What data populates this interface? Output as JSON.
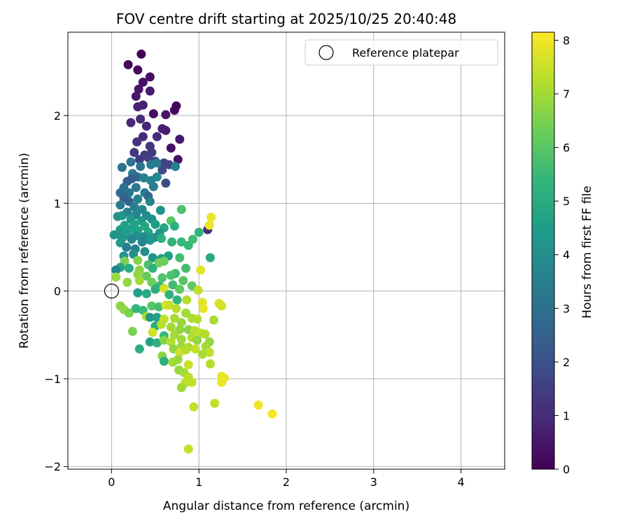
{
  "chart_data": {
    "type": "scatter",
    "title": "FOV centre drift starting at 2025/10/25 20:40:48",
    "xlabel": "Angular distance from reference (arcmin)",
    "ylabel": "Rotation from reference (arcmin)",
    "xlim": [
      -0.5,
      4.5
    ],
    "ylim": [
      -2.03,
      2.95
    ],
    "x_ticks": [
      0,
      1,
      2,
      3,
      4
    ],
    "x_tick_labels": [
      "0",
      "1",
      "2",
      "3",
      "4"
    ],
    "y_ticks": [
      -2,
      -1,
      0,
      1,
      2
    ],
    "y_tick_labels": [
      "−2",
      "−1",
      "0",
      "1",
      "2"
    ],
    "grid": true,
    "legend": {
      "position": "upper-right",
      "entries": [
        "Reference platepar"
      ]
    },
    "reference_point": {
      "name": "Reference platepar",
      "x": 0,
      "y": 0,
      "marker": "open-circle"
    },
    "colorbar": {
      "label": "Hours from first FF file",
      "colormap": "viridis",
      "range": [
        0,
        8.15
      ],
      "ticks": [
        0,
        1,
        2,
        3,
        4,
        5,
        6,
        7,
        8
      ],
      "tick_labels": [
        "0",
        "1",
        "2",
        "3",
        "4",
        "5",
        "6",
        "7",
        "8"
      ]
    },
    "points_note": "Each point is [x_arcmin, rotation_arcmin, hours]",
    "points": [
      [
        0.34,
        2.7,
        0.05
      ],
      [
        0.19,
        2.58,
        0.15
      ],
      [
        0.3,
        2.52,
        0.25
      ],
      [
        0.44,
        2.44,
        0.35
      ],
      [
        0.36,
        2.38,
        0.4
      ],
      [
        0.31,
        2.3,
        0.45
      ],
      [
        0.28,
        2.22,
        0.55
      ],
      [
        0.44,
        2.28,
        0.6
      ],
      [
        0.36,
        2.12,
        0.7
      ],
      [
        0.3,
        2.1,
        0.8
      ],
      [
        0.48,
        2.02,
        0.3
      ],
      [
        0.62,
        2.01,
        0.5
      ],
      [
        0.72,
        2.06,
        0.2
      ],
      [
        0.74,
        2.11,
        0.1
      ],
      [
        0.22,
        1.92,
        0.9
      ],
      [
        0.33,
        1.96,
        1.0
      ],
      [
        0.4,
        1.88,
        0.85
      ],
      [
        0.58,
        1.85,
        0.75
      ],
      [
        0.62,
        1.83,
        0.65
      ],
      [
        0.36,
        1.76,
        0.95
      ],
      [
        0.52,
        1.76,
        1.05
      ],
      [
        0.78,
        1.73,
        0.55
      ],
      [
        0.29,
        1.7,
        1.2
      ],
      [
        0.44,
        1.65,
        1.25
      ],
      [
        0.68,
        1.63,
        0.4
      ],
      [
        0.26,
        1.58,
        1.3
      ],
      [
        0.38,
        1.55,
        1.35
      ],
      [
        0.46,
        1.58,
        1.4
      ],
      [
        0.32,
        1.5,
        1.45
      ],
      [
        0.42,
        1.52,
        1.5
      ],
      [
        0.5,
        1.48,
        1.55
      ],
      [
        0.76,
        1.5,
        0.45
      ],
      [
        0.6,
        1.46,
        1.6
      ],
      [
        0.66,
        1.44,
        1.65
      ],
      [
        0.58,
        1.38,
        1.8
      ],
      [
        0.12,
        1.41,
        3.0
      ],
      [
        0.22,
        1.47,
        3.1
      ],
      [
        0.33,
        1.42,
        3.2
      ],
      [
        0.45,
        1.44,
        3.3
      ],
      [
        0.52,
        1.46,
        3.4
      ],
      [
        0.73,
        1.42,
        3.5
      ],
      [
        0.24,
        1.34,
        3.3
      ],
      [
        0.3,
        1.3,
        2.8
      ],
      [
        0.37,
        1.29,
        3.6
      ],
      [
        0.45,
        1.26,
        3.7
      ],
      [
        0.52,
        1.3,
        3.8
      ],
      [
        0.18,
        1.25,
        2.5
      ],
      [
        0.62,
        1.23,
        1.9
      ],
      [
        0.23,
        1.28,
        2.4
      ],
      [
        0.14,
        1.18,
        3.1
      ],
      [
        0.2,
        1.12,
        3.2
      ],
      [
        0.1,
        1.12,
        2.9
      ],
      [
        0.28,
        1.18,
        3.3
      ],
      [
        0.48,
        1.19,
        3.4
      ],
      [
        0.38,
        1.12,
        3.5
      ],
      [
        0.42,
        1.08,
        2.7
      ],
      [
        0.14,
        1.06,
        2.6
      ],
      [
        0.2,
        1.02,
        2.5
      ],
      [
        0.3,
        1.05,
        3.6
      ],
      [
        0.44,
        1.02,
        3.7
      ],
      [
        0.1,
        0.98,
        3.4
      ],
      [
        0.26,
        0.96,
        3.5
      ],
      [
        0.35,
        0.93,
        3.8
      ],
      [
        0.56,
        0.92,
        4.2
      ],
      [
        0.8,
        0.93,
        5.8
      ],
      [
        0.18,
        0.9,
        3.6
      ],
      [
        0.28,
        0.87,
        3.7
      ],
      [
        0.4,
        0.86,
        3.9
      ],
      [
        0.46,
        0.82,
        4.0
      ],
      [
        0.07,
        0.85,
        4.1
      ],
      [
        0.12,
        0.86,
        4.2
      ],
      [
        0.22,
        0.82,
        4.3
      ],
      [
        0.34,
        0.8,
        4.4
      ],
      [
        0.68,
        0.8,
        6.0
      ],
      [
        0.5,
        0.76,
        4.5
      ],
      [
        0.15,
        0.75,
        4.6
      ],
      [
        0.26,
        0.76,
        4.7
      ],
      [
        0.38,
        0.74,
        4.8
      ],
      [
        0.6,
        0.72,
        4.9
      ],
      [
        0.72,
        0.74,
        5.1
      ],
      [
        0.1,
        0.7,
        4.5
      ],
      [
        0.2,
        0.7,
        4.6
      ],
      [
        0.3,
        0.69,
        4.7
      ],
      [
        0.42,
        0.67,
        4.8
      ],
      [
        0.55,
        0.66,
        4.3
      ],
      [
        0.08,
        0.65,
        4.4
      ],
      [
        0.18,
        0.64,
        4.5
      ],
      [
        0.28,
        0.63,
        4.0
      ],
      [
        0.37,
        0.62,
        3.9
      ],
      [
        0.49,
        0.61,
        4.1
      ],
      [
        0.03,
        0.64,
        4.2
      ],
      [
        0.12,
        0.6,
        4.3
      ],
      [
        0.23,
        0.59,
        3.8
      ],
      [
        0.44,
        0.58,
        4.4
      ],
      [
        0.57,
        0.6,
        5.2
      ],
      [
        0.1,
        0.55,
        4.5
      ],
      [
        0.35,
        0.56,
        3.7
      ],
      [
        0.69,
        0.56,
        5.3
      ],
      [
        0.8,
        0.56,
        5.4
      ],
      [
        0.88,
        0.52,
        5.5
      ],
      [
        0.93,
        0.59,
        5.6
      ],
      [
        0.17,
        0.5,
        3.5
      ],
      [
        0.27,
        0.48,
        3.6
      ],
      [
        0.38,
        0.45,
        4.0
      ],
      [
        0.25,
        0.42,
        4.1
      ],
      [
        0.14,
        0.4,
        4.2
      ],
      [
        0.47,
        0.38,
        4.3
      ],
      [
        0.57,
        0.37,
        4.4
      ],
      [
        0.65,
        0.4,
        4.5
      ],
      [
        0.78,
        0.38,
        5.7
      ],
      [
        1.0,
        0.67,
        5.3
      ],
      [
        1.1,
        0.7,
        1.0
      ],
      [
        1.12,
        0.75,
        7.95
      ],
      [
        1.14,
        0.84,
        7.9
      ],
      [
        1.13,
        0.38,
        5.0
      ],
      [
        1.02,
        0.24,
        7.8
      ],
      [
        0.15,
        0.34,
        6.5
      ],
      [
        0.3,
        0.35,
        6.6
      ],
      [
        0.42,
        0.3,
        5.8
      ],
      [
        0.54,
        0.32,
        6.4
      ],
      [
        0.6,
        0.34,
        6.3
      ],
      [
        0.1,
        0.27,
        4.8
      ],
      [
        0.2,
        0.26,
        5.0
      ],
      [
        0.32,
        0.24,
        6.7
      ],
      [
        0.47,
        0.26,
        5.2
      ],
      [
        0.73,
        0.2,
        5.6
      ],
      [
        0.85,
        0.26,
        5.7
      ],
      [
        0.05,
        0.24,
        3.6
      ],
      [
        0.3,
        0.19,
        6.8
      ],
      [
        0.4,
        0.17,
        6.2
      ],
      [
        0.58,
        0.15,
        5.9
      ],
      [
        0.68,
        0.18,
        5.8
      ],
      [
        0.82,
        0.12,
        6.0
      ],
      [
        0.92,
        0.06,
        6.1
      ],
      [
        0.05,
        0.16,
        6.9
      ],
      [
        0.18,
        0.1,
        6.8
      ],
      [
        0.32,
        0.12,
        7.0
      ],
      [
        0.46,
        0.1,
        6.3
      ],
      [
        0.55,
        0.06,
        5.5
      ],
      [
        0.7,
        0.07,
        5.6
      ],
      [
        0.78,
        0.02,
        6.1
      ],
      [
        0.99,
        0.01,
        7.4
      ],
      [
        0.3,
        -0.02,
        4.6
      ],
      [
        0.4,
        -0.03,
        4.9
      ],
      [
        0.5,
        0.02,
        5.1
      ],
      [
        0.6,
        0.03,
        7.6
      ],
      [
        0.66,
        -0.04,
        5.2
      ],
      [
        0.75,
        -0.1,
        5.3
      ],
      [
        0.86,
        -0.1,
        7.2
      ],
      [
        1.04,
        -0.13,
        7.8
      ],
      [
        1.23,
        -0.14,
        7.7
      ],
      [
        1.26,
        -0.17,
        7.6
      ],
      [
        1.05,
        -0.2,
        7.9
      ],
      [
        0.1,
        -0.17,
        6.7
      ],
      [
        0.14,
        -0.21,
        6.8
      ],
      [
        0.2,
        -0.25,
        6.5
      ],
      [
        0.28,
        -0.2,
        5.4
      ],
      [
        0.36,
        -0.22,
        5.5
      ],
      [
        0.46,
        -0.17,
        6.0
      ],
      [
        0.54,
        -0.18,
        5.7
      ],
      [
        0.62,
        -0.16,
        7.7
      ],
      [
        0.66,
        -0.16,
        7.5
      ],
      [
        0.74,
        -0.2,
        7.3
      ],
      [
        0.85,
        -0.25,
        7.0
      ],
      [
        0.4,
        -0.29,
        7.1
      ],
      [
        0.44,
        -0.3,
        4.3
      ],
      [
        0.52,
        -0.3,
        4.6
      ],
      [
        0.6,
        -0.32,
        7.4
      ],
      [
        0.72,
        -0.31,
        7.1
      ],
      [
        0.8,
        -0.36,
        6.9
      ],
      [
        0.92,
        -0.31,
        7.1
      ],
      [
        0.98,
        -0.32,
        7.2
      ],
      [
        1.17,
        -0.33,
        7.1
      ],
      [
        0.5,
        -0.4,
        5.0
      ],
      [
        0.57,
        -0.38,
        7.3
      ],
      [
        0.68,
        -0.41,
        7.0
      ],
      [
        0.78,
        -0.44,
        6.8
      ],
      [
        0.88,
        -0.44,
        6.7
      ],
      [
        0.95,
        -0.45,
        7.3
      ],
      [
        1.02,
        -0.48,
        7.4
      ],
      [
        0.24,
        -0.46,
        6.5
      ],
      [
        0.47,
        -0.47,
        7.6
      ],
      [
        0.6,
        -0.51,
        5.4
      ],
      [
        0.72,
        -0.5,
        7.0
      ],
      [
        0.8,
        -0.55,
        6.9
      ],
      [
        0.92,
        -0.53,
        7.2
      ],
      [
        0.98,
        -0.56,
        6.8
      ],
      [
        1.07,
        -0.49,
        7.2
      ],
      [
        1.12,
        -0.58,
        6.8
      ],
      [
        0.44,
        -0.58,
        4.6
      ],
      [
        0.52,
        -0.59,
        5.2
      ],
      [
        0.6,
        -0.56,
        6.6
      ],
      [
        0.68,
        -0.58,
        7.2
      ],
      [
        0.8,
        -0.63,
        7.0
      ],
      [
        0.88,
        -0.64,
        7.1
      ],
      [
        0.96,
        -0.66,
        7.4
      ],
      [
        1.08,
        -0.63,
        7.0
      ],
      [
        1.12,
        -0.7,
        7.4
      ],
      [
        0.32,
        -0.66,
        5.1
      ],
      [
        0.71,
        -0.66,
        6.8
      ],
      [
        0.78,
        -0.7,
        7.6
      ],
      [
        0.85,
        -0.67,
        7.2
      ],
      [
        1.04,
        -0.72,
        7.1
      ],
      [
        0.58,
        -0.74,
        6.7
      ],
      [
        0.6,
        -0.8,
        5.1
      ],
      [
        0.7,
        -0.81,
        7.0
      ],
      [
        0.76,
        -0.78,
        6.9
      ],
      [
        0.88,
        -0.84,
        7.5
      ],
      [
        1.13,
        -0.83,
        7.2
      ],
      [
        0.77,
        -0.9,
        6.9
      ],
      [
        0.83,
        -0.93,
        7.0
      ],
      [
        0.88,
        -0.98,
        7.3
      ],
      [
        0.84,
        -1.05,
        7.4
      ],
      [
        1.26,
        -0.97,
        7.9
      ],
      [
        1.26,
        -1.04,
        7.9
      ],
      [
        1.29,
        -0.99,
        7.9
      ],
      [
        0.8,
        -1.1,
        7.0
      ],
      [
        0.92,
        -1.04,
        7.4
      ],
      [
        1.18,
        -1.28,
        7.4
      ],
      [
        0.94,
        -1.32,
        7.4
      ],
      [
        1.68,
        -1.3,
        8.0
      ],
      [
        1.84,
        -1.4,
        8.1
      ],
      [
        0.88,
        -1.8,
        7.4
      ]
    ]
  }
}
